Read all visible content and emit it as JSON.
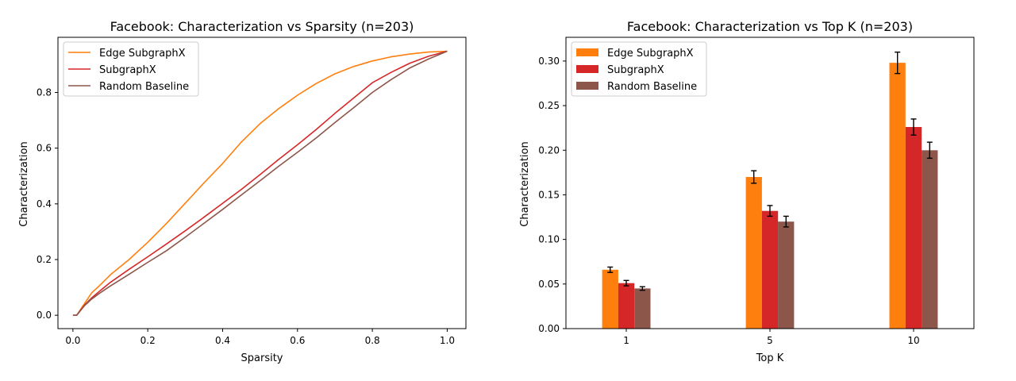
{
  "chart_data": [
    {
      "type": "line",
      "title": "Facebook: Characterization vs Sparsity (n=203)",
      "xlabel": "Sparsity",
      "ylabel": "Characterization",
      "xlim": [
        -0.04,
        1.05
      ],
      "ylim": [
        -0.048,
        0.998
      ],
      "xticks": [
        0.0,
        0.2,
        0.4,
        0.6,
        0.8,
        1.0
      ],
      "xtick_labels": [
        "0.0",
        "0.2",
        "0.4",
        "0.6",
        "0.8",
        "1.0"
      ],
      "yticks": [
        0.0,
        0.2,
        0.4,
        0.6,
        0.8
      ],
      "ytick_labels": [
        "0.0",
        "0.2",
        "0.4",
        "0.6",
        "0.8"
      ],
      "legend_position": "top-left",
      "grid": false,
      "series": [
        {
          "name": "Edge SubgraphX",
          "color": "#ff7f0e",
          "x": [
            0.0,
            0.01,
            0.03,
            0.05,
            0.07,
            0.1,
            0.15,
            0.2,
            0.25,
            0.3,
            0.35,
            0.4,
            0.45,
            0.5,
            0.55,
            0.6,
            0.65,
            0.7,
            0.75,
            0.8,
            0.85,
            0.9,
            0.95,
            1.0
          ],
          "y": [
            0.0,
            0.0,
            0.04,
            0.08,
            0.105,
            0.145,
            0.2,
            0.262,
            0.33,
            0.402,
            0.475,
            0.545,
            0.622,
            0.688,
            0.742,
            0.79,
            0.832,
            0.867,
            0.893,
            0.913,
            0.928,
            0.938,
            0.945,
            0.948
          ]
        },
        {
          "name": "SubgraphX",
          "color": "#d62728",
          "x": [
            0.0,
            0.01,
            0.03,
            0.05,
            0.07,
            0.1,
            0.15,
            0.2,
            0.25,
            0.3,
            0.35,
            0.4,
            0.45,
            0.5,
            0.55,
            0.6,
            0.65,
            0.7,
            0.75,
            0.8,
            0.85,
            0.9,
            0.95,
            1.0
          ],
          "y": [
            0.0,
            0.0,
            0.035,
            0.062,
            0.085,
            0.118,
            0.165,
            0.21,
            0.256,
            0.303,
            0.352,
            0.402,
            0.452,
            0.505,
            0.56,
            0.612,
            0.667,
            0.725,
            0.78,
            0.835,
            0.872,
            0.905,
            0.93,
            0.948
          ]
        },
        {
          "name": "Random Baseline",
          "color": "#8c564b",
          "x": [
            0.0,
            0.01,
            0.03,
            0.05,
            0.07,
            0.1,
            0.15,
            0.2,
            0.25,
            0.3,
            0.35,
            0.4,
            0.45,
            0.5,
            0.55,
            0.6,
            0.65,
            0.7,
            0.75,
            0.8,
            0.85,
            0.9,
            0.95,
            1.0
          ],
          "y": [
            0.0,
            0.0,
            0.033,
            0.058,
            0.078,
            0.105,
            0.147,
            0.19,
            0.232,
            0.28,
            0.33,
            0.38,
            0.432,
            0.483,
            0.535,
            0.585,
            0.637,
            0.692,
            0.745,
            0.8,
            0.846,
            0.888,
            0.92,
            0.948
          ]
        }
      ]
    },
    {
      "type": "bar",
      "title": "Facebook: Characterization vs Top K (n=203)",
      "xlabel": "Top K",
      "ylabel": "Characterization",
      "categories": [
        "1",
        "5",
        "10"
      ],
      "ylim": [
        0,
        0.3266
      ],
      "yticks": [
        0.0,
        0.05,
        0.1,
        0.15,
        0.2,
        0.25,
        0.3
      ],
      "ytick_labels": [
        "0.00",
        "0.05",
        "0.10",
        "0.15",
        "0.20",
        "0.25",
        "0.30"
      ],
      "legend_position": "top-left",
      "grid": false,
      "series": [
        {
          "name": "Edge SubgraphX",
          "color": "#ff7f0e",
          "values": [
            0.066,
            0.17,
            0.298
          ],
          "errors": [
            0.003,
            0.007,
            0.012
          ]
        },
        {
          "name": "SubgraphX",
          "color": "#d62728",
          "values": [
            0.051,
            0.132,
            0.226
          ],
          "errors": [
            0.003,
            0.006,
            0.009
          ]
        },
        {
          "name": "Random Baseline",
          "color": "#8c564b",
          "values": [
            0.045,
            0.12,
            0.2
          ],
          "errors": [
            0.002,
            0.006,
            0.009
          ]
        }
      ]
    }
  ]
}
